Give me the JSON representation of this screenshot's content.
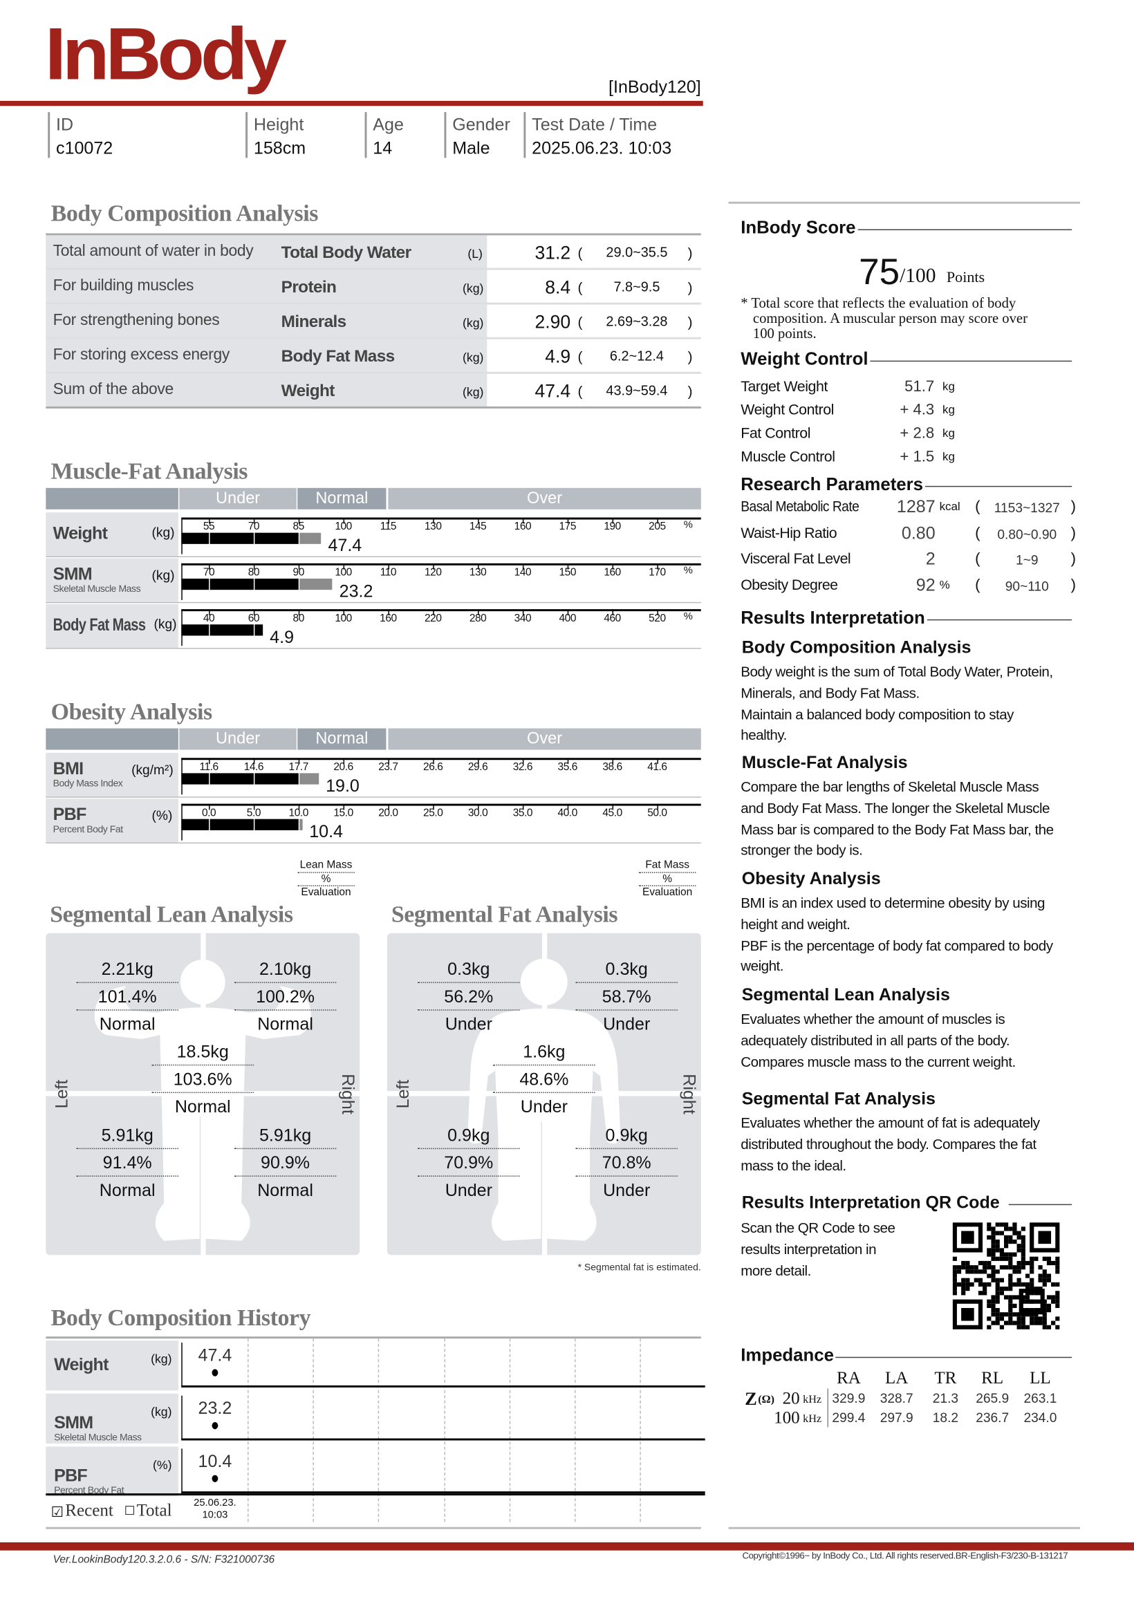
{
  "colors": {
    "brand": "#a0221a",
    "section_title": "#777777",
    "cell_bg": "#e1e3e6",
    "band_dark": "#9aa3ab",
    "band_light": "#b7bdc3",
    "bar_black": "#000000",
    "bar_gray": "#8c8c8c"
  },
  "header": {
    "logo": "InBody",
    "model": "[InBody120]",
    "fields": [
      {
        "label": "ID",
        "value": "c10072"
      },
      {
        "label": "Height",
        "value": "158cm"
      },
      {
        "label": "Age",
        "value": "14"
      },
      {
        "label": "Gender",
        "value": "Male"
      },
      {
        "label": "Test Date / Time",
        "value": "2025.06.23. 10:03"
      }
    ]
  },
  "bca": {
    "title": "Body Composition Analysis",
    "rows": [
      {
        "desc": "Total amount of water in body",
        "name": "Total Body Water",
        "unit": "(L)",
        "value": "31.2",
        "range": "29.0~35.5"
      },
      {
        "desc": "For building muscles",
        "name": "Protein",
        "unit": "(kg)",
        "value": "8.4",
        "range": "7.8~9.5"
      },
      {
        "desc": "For strengthening bones",
        "name": "Minerals",
        "unit": "(kg)",
        "value": "2.90",
        "range": "2.69~3.28"
      },
      {
        "desc": "For storing excess energy",
        "name": "Body Fat Mass",
        "unit": "(kg)",
        "value": "4.9",
        "range": "6.2~12.4"
      },
      {
        "desc": "Sum of the above",
        "name": "Weight",
        "unit": "(kg)",
        "value": "47.4",
        "range": "43.9~59.4"
      }
    ]
  },
  "mfa": {
    "title": "Muscle-Fat Analysis",
    "bands": [
      "Under",
      "Normal",
      "Over"
    ],
    "rows": [
      {
        "name": "Weight",
        "sub": "",
        "unit": "(kg)",
        "ticks": [
          "55",
          "70",
          "85",
          "100",
          "115",
          "130",
          "145",
          "160",
          "175",
          "190",
          "205"
        ],
        "tick_unit": "%",
        "value": "47.4",
        "level_pct": 92.5
      },
      {
        "name": "SMM",
        "sub": "Skeletal Muscle Mass",
        "unit": "(kg)",
        "ticks": [
          "70",
          "80",
          "90",
          "100",
          "110",
          "120",
          "130",
          "140",
          "150",
          "160",
          "170"
        ],
        "tick_unit": "%",
        "value": "23.2",
        "level_pct": 97.5
      },
      {
        "name": "Body Fat Mass",
        "sub": "",
        "unit": "(kg)",
        "ticks": [
          "40",
          "60",
          "80",
          "100",
          "160",
          "220",
          "280",
          "340",
          "400",
          "460",
          "520"
        ],
        "tick_unit": "%",
        "value": "4.9",
        "level_pct": 64
      }
    ]
  },
  "obesity": {
    "title": "Obesity Analysis",
    "bands": [
      "Under",
      "Normal",
      "Over"
    ],
    "rows": [
      {
        "name": "BMI",
        "sub": "Body Mass Index",
        "unit": "(kg/m²)",
        "ticks": [
          "11.6",
          "14.6",
          "17.7",
          "20.6",
          "23.7",
          "26.6",
          "29.6",
          "32.6",
          "35.6",
          "38.6",
          "41.6"
        ],
        "tick_unit": "",
        "value": "19.0",
        "level_pct": 19.0
      },
      {
        "name": "PBF",
        "sub": "Percent Body Fat",
        "unit": "(%)",
        "ticks": [
          "0.0",
          "5.0",
          "10.0",
          "15.0",
          "20.0",
          "25.0",
          "30.0",
          "35.0",
          "40.0",
          "45.0",
          "50.0"
        ],
        "tick_unit": "",
        "value": "10.4",
        "level_pct": 10.4
      }
    ]
  },
  "lean": {
    "title": "Segmental Lean Analysis",
    "legend": [
      "Lean Mass",
      "%",
      "Evaluation"
    ],
    "left": "Left",
    "right": "Right",
    "segments": [
      {
        "part": "left-arm",
        "kg": "2.21kg",
        "pct": "101.4%",
        "eval": "Normal"
      },
      {
        "part": "right-arm",
        "kg": "2.10kg",
        "pct": "100.2%",
        "eval": "Normal"
      },
      {
        "part": "trunk",
        "kg": "18.5kg",
        "pct": "103.6%",
        "eval": "Normal"
      },
      {
        "part": "left-leg",
        "kg": "5.91kg",
        "pct": "91.4%",
        "eval": "Normal"
      },
      {
        "part": "right-leg",
        "kg": "5.91kg",
        "pct": "90.9%",
        "eval": "Normal"
      }
    ]
  },
  "fat": {
    "title": "Segmental Fat Analysis",
    "legend": [
      "Fat Mass",
      "%",
      "Evaluation"
    ],
    "left": "Left",
    "right": "Right",
    "segments": [
      {
        "part": "left-arm",
        "kg": "0.3kg",
        "pct": "56.2%",
        "eval": "Under"
      },
      {
        "part": "right-arm",
        "kg": "0.3kg",
        "pct": "58.7%",
        "eval": "Under"
      },
      {
        "part": "trunk",
        "kg": "1.6kg",
        "pct": "48.6%",
        "eval": "Under"
      },
      {
        "part": "left-leg",
        "kg": "0.9kg",
        "pct": "70.9%",
        "eval": "Under"
      },
      {
        "part": "right-leg",
        "kg": "0.9kg",
        "pct": "70.8%",
        "eval": "Under"
      }
    ],
    "note": "* Segmental fat is estimated."
  },
  "history": {
    "title": "Body Composition History",
    "rows": [
      {
        "name": "Weight",
        "sub": "",
        "unit": "(kg)",
        "values": [
          "47.4"
        ]
      },
      {
        "name": "SMM",
        "sub": "Skeletal Muscle Mass",
        "unit": "(kg)",
        "values": [
          "23.2"
        ]
      },
      {
        "name": "PBF",
        "sub": "Percent Body Fat",
        "unit": "(%)",
        "values": [
          "10.4"
        ]
      }
    ],
    "recent_label": "Recent",
    "recent_checked": true,
    "total_label": "Total",
    "total_checked": false,
    "dates": [
      [
        "25.06.23.",
        "10:03"
      ]
    ]
  },
  "score": {
    "title": "InBody Score",
    "value": "75",
    "max": "/100",
    "unit": "Points",
    "note": [
      "* Total score that reflects the evaluation of body",
      "composition. A muscular person may score over",
      "100 points."
    ]
  },
  "weight_control": {
    "title": "Weight Control",
    "rows": [
      {
        "label": "Target Weight",
        "value": "51.7",
        "unit": "kg"
      },
      {
        "label": "Weight Control",
        "value": "+ 4.3",
        "unit": "kg"
      },
      {
        "label": "Fat Control",
        "value": "+ 2.8",
        "unit": "kg"
      },
      {
        "label": "Muscle Control",
        "value": "+ 1.5",
        "unit": "kg"
      }
    ]
  },
  "research": {
    "title": "Research Parameters",
    "rows": [
      {
        "label": "Basal Metabolic Rate",
        "value": "1287",
        "unit": "kcal",
        "range": "1153~1327"
      },
      {
        "label": "Waist-Hip Ratio",
        "value": "0.80",
        "unit": "",
        "range": "0.80~0.90"
      },
      {
        "label": "Visceral Fat Level",
        "value": "2",
        "unit": "",
        "range": "1~9"
      },
      {
        "label": "Obesity Degree",
        "value": "92",
        "unit": "%",
        "range": "90~110"
      }
    ]
  },
  "results": {
    "title": "Results Interpretation",
    "sections": [
      {
        "title": "Body Composition Analysis",
        "lines": [
          "Body weight is the sum of Total Body Water, Protein,",
          "Minerals, and Body Fat Mass.",
          "Maintain a balanced body composition to stay",
          "healthy."
        ]
      },
      {
        "title": "Muscle-Fat Analysis",
        "lines": [
          "Compare the bar lengths of Skeletal Muscle Mass",
          "and Body Fat Mass. The longer the Skeletal Muscle",
          "Mass bar is compared to the Body Fat Mass bar, the",
          "stronger the body is."
        ]
      },
      {
        "title": "Obesity Analysis",
        "lines": [
          "BMI is an index used to determine obesity by using",
          "height and weight.",
          "PBF is the percentage of body fat compared to body",
          "weight."
        ]
      },
      {
        "title": "Segmental Lean Analysis",
        "lines": [
          "Evaluates whether the amount of muscles is",
          "adequately distributed in all parts of the body.",
          "Compares muscle mass to the current weight."
        ]
      },
      {
        "title": "Segmental Fat Analysis",
        "lines": [
          "Evaluates whether the amount of fat is adequately",
          "distributed throughout the body. Compares the fat",
          "mass to the ideal."
        ]
      }
    ]
  },
  "qr": {
    "title": "Results Interpretation QR Code",
    "lines": [
      "Scan the QR Code to see",
      "results interpretation in",
      "more detail."
    ]
  },
  "impedance": {
    "title": "Impedance",
    "symbol": "Z",
    "symbol_unit": "(Ω)",
    "columns": [
      "RA",
      "LA",
      "TR",
      "RL",
      "LL"
    ],
    "rows": [
      {
        "freq": "20",
        "unit": "kHz",
        "values": [
          "329.9",
          "328.7",
          "21.3",
          "265.9",
          "263.1"
        ]
      },
      {
        "freq": "100",
        "unit": "kHz",
        "values": [
          "299.4",
          "297.9",
          "18.2",
          "236.7",
          "234.0"
        ]
      }
    ]
  },
  "footer": {
    "version": "Ver.LookinBody120.3.2.0.6 - S/N: F321000736",
    "copyright": "Copyright©1996~ by InBody Co., Ltd. All rights reserved.BR-English-F3/230-B-131217"
  }
}
